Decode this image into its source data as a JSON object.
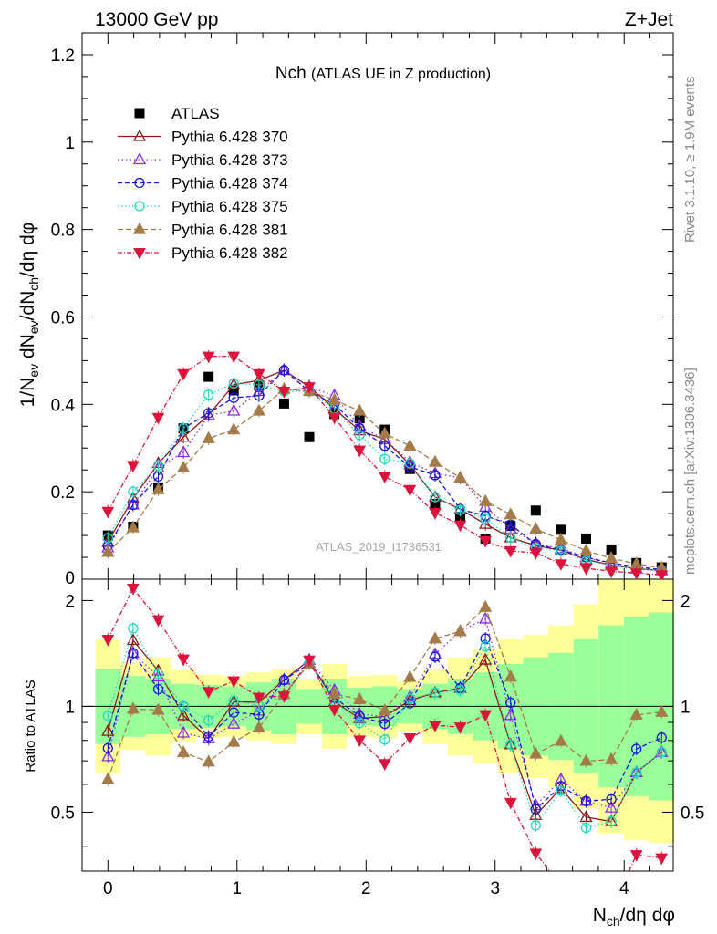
{
  "header": {
    "left": "13000 GeV pp",
    "right": "Z+Jet"
  },
  "side_labels": {
    "rivet": "Rivet 3.1.10, ≥ 1.9M events",
    "mcplots": "mcplots.cern.ch [arXiv:1306.3436]"
  },
  "watermark": "ATLAS_2019_I1736531",
  "chart_data": {
    "type": "scatter",
    "title": "Nch",
    "subtitle": "(ATLAS UE in Z production)",
    "ylabel": {
      "base": "1/N",
      "sub1": "ev",
      "mid": " dN",
      "sub2": "ev",
      "end": "/dN",
      "sub3": "ch",
      "tail": "/dη dφ"
    },
    "xlabel": {
      "base": "N",
      "sub": "ch",
      "tail": "/dη dφ"
    },
    "ratio_ylabel": "Ratio to ATLAS",
    "xlim": [
      -0.2,
      4.38
    ],
    "ylim": [
      0,
      1.25
    ],
    "ratio_ylim": [
      0.34,
      2.3
    ],
    "x_ticks": [
      0,
      1,
      2,
      3,
      4
    ],
    "x_tick_labels": [
      "0",
      "1",
      "2",
      "3",
      "4"
    ],
    "y_ticks": [
      0.2,
      0.4,
      0.6,
      0.8,
      1.0,
      1.2
    ],
    "y_tick_labels": [
      "0.2",
      "0.4",
      "0.6",
      "0.8",
      "1",
      "1.2"
    ],
    "y_zero_label": "0",
    "ratio_ticks": [
      0.5,
      1,
      2
    ],
    "ratio_tick_labels": [
      "0.5",
      "1",
      "2"
    ],
    "x": [
      0.0,
      0.195,
      0.39,
      0.585,
      0.78,
      0.975,
      1.17,
      1.365,
      1.56,
      1.755,
      1.95,
      2.145,
      2.34,
      2.535,
      2.73,
      2.925,
      3.12,
      3.315,
      3.51,
      3.705,
      3.9,
      4.095,
      4.29
    ],
    "band_y": [
      1.55,
      1.33,
      1.38,
      1.27,
      1.23,
      1.22,
      1.25,
      1.28,
      1.2,
      1.32,
      1.22,
      1.23,
      1.18,
      1.28,
      1.38,
      1.45,
      1.55,
      1.6,
      1.7,
      1.95,
      2.3,
      2.4,
      2.45
    ],
    "band_g": [
      1.28,
      1.22,
      1.2,
      1.16,
      1.15,
      1.14,
      1.17,
      1.2,
      1.12,
      1.2,
      1.13,
      1.14,
      1.12,
      1.16,
      1.2,
      1.25,
      1.32,
      1.38,
      1.42,
      1.55,
      1.7,
      1.8,
      1.85
    ],
    "series": [
      {
        "name": "ATLAS",
        "color": "#000000",
        "marker": "square",
        "dash": "none",
        "y": [
          0.1,
          0.12,
          0.21,
          0.345,
          0.463,
          0.432,
          0.443,
          0.402,
          0.325,
          0.378,
          0.368,
          0.342,
          0.252,
          0.172,
          0.142,
          0.093,
          0.122,
          0.157,
          0.113,
          0.093,
          0.068,
          0.037,
          0.027
        ]
      },
      {
        "name": "Pythia 6.428 370",
        "color": "#8b1a1a",
        "marker": "triangle-open",
        "dash": "none",
        "y": [
          0.085,
          0.185,
          0.265,
          0.325,
          0.375,
          0.445,
          0.455,
          0.478,
          0.44,
          0.39,
          0.34,
          0.32,
          0.262,
          0.188,
          0.16,
          0.126,
          0.095,
          0.077,
          0.066,
          0.045,
          0.032,
          0.024,
          0.02
        ]
      },
      {
        "name": "Pythia 6.428 373",
        "color": "#8a2be2",
        "marker": "triangle-open",
        "dash": "1.5,3",
        "y": [
          0.072,
          0.17,
          0.255,
          0.29,
          0.375,
          0.385,
          0.43,
          0.478,
          0.44,
          0.42,
          0.35,
          0.32,
          0.268,
          0.242,
          0.232,
          0.165,
          0.115,
          0.082,
          0.07,
          0.05,
          0.035,
          0.024,
          0.02
        ]
      },
      {
        "name": "Pythia 6.428 374",
        "color": "#1515d8",
        "marker": "circle-open",
        "dash": "5,3",
        "y": [
          0.076,
          0.17,
          0.235,
          0.345,
          0.38,
          0.415,
          0.42,
          0.478,
          0.43,
          0.4,
          0.345,
          0.305,
          0.257,
          0.238,
          0.16,
          0.145,
          0.125,
          0.08,
          0.067,
          0.05,
          0.037,
          0.028,
          0.022
        ]
      },
      {
        "name": "Pythia 6.428 375",
        "color": "#20d8c0",
        "marker": "circle-open",
        "dash": "1.5,2.5",
        "y": [
          0.094,
          0.2,
          0.26,
          0.345,
          0.422,
          0.448,
          0.445,
          0.43,
          0.43,
          0.39,
          0.33,
          0.275,
          0.265,
          0.188,
          0.158,
          0.138,
          0.095,
          0.072,
          0.065,
          0.042,
          0.032,
          0.024,
          0.02
        ]
      },
      {
        "name": "Pythia 6.428 381",
        "color": "#a47a48",
        "marker": "triangle-filled",
        "dash": "6,3",
        "y": [
          0.062,
          0.118,
          0.205,
          0.255,
          0.322,
          0.342,
          0.385,
          0.435,
          0.43,
          0.41,
          0.385,
          0.333,
          0.305,
          0.268,
          0.232,
          0.178,
          0.148,
          0.115,
          0.09,
          0.065,
          0.048,
          0.035,
          0.026
        ]
      },
      {
        "name": "Pythia 6.428 382",
        "color": "#dc143c",
        "marker": "triangle-down-filled",
        "dash": "5,2,1,2",
        "y": [
          0.155,
          0.26,
          0.37,
          0.47,
          0.51,
          0.51,
          0.47,
          0.43,
          0.44,
          0.37,
          0.295,
          0.235,
          0.205,
          0.152,
          0.124,
          0.088,
          0.065,
          0.06,
          0.035,
          0.025,
          0.018,
          0.014,
          0.01
        ]
      }
    ]
  }
}
